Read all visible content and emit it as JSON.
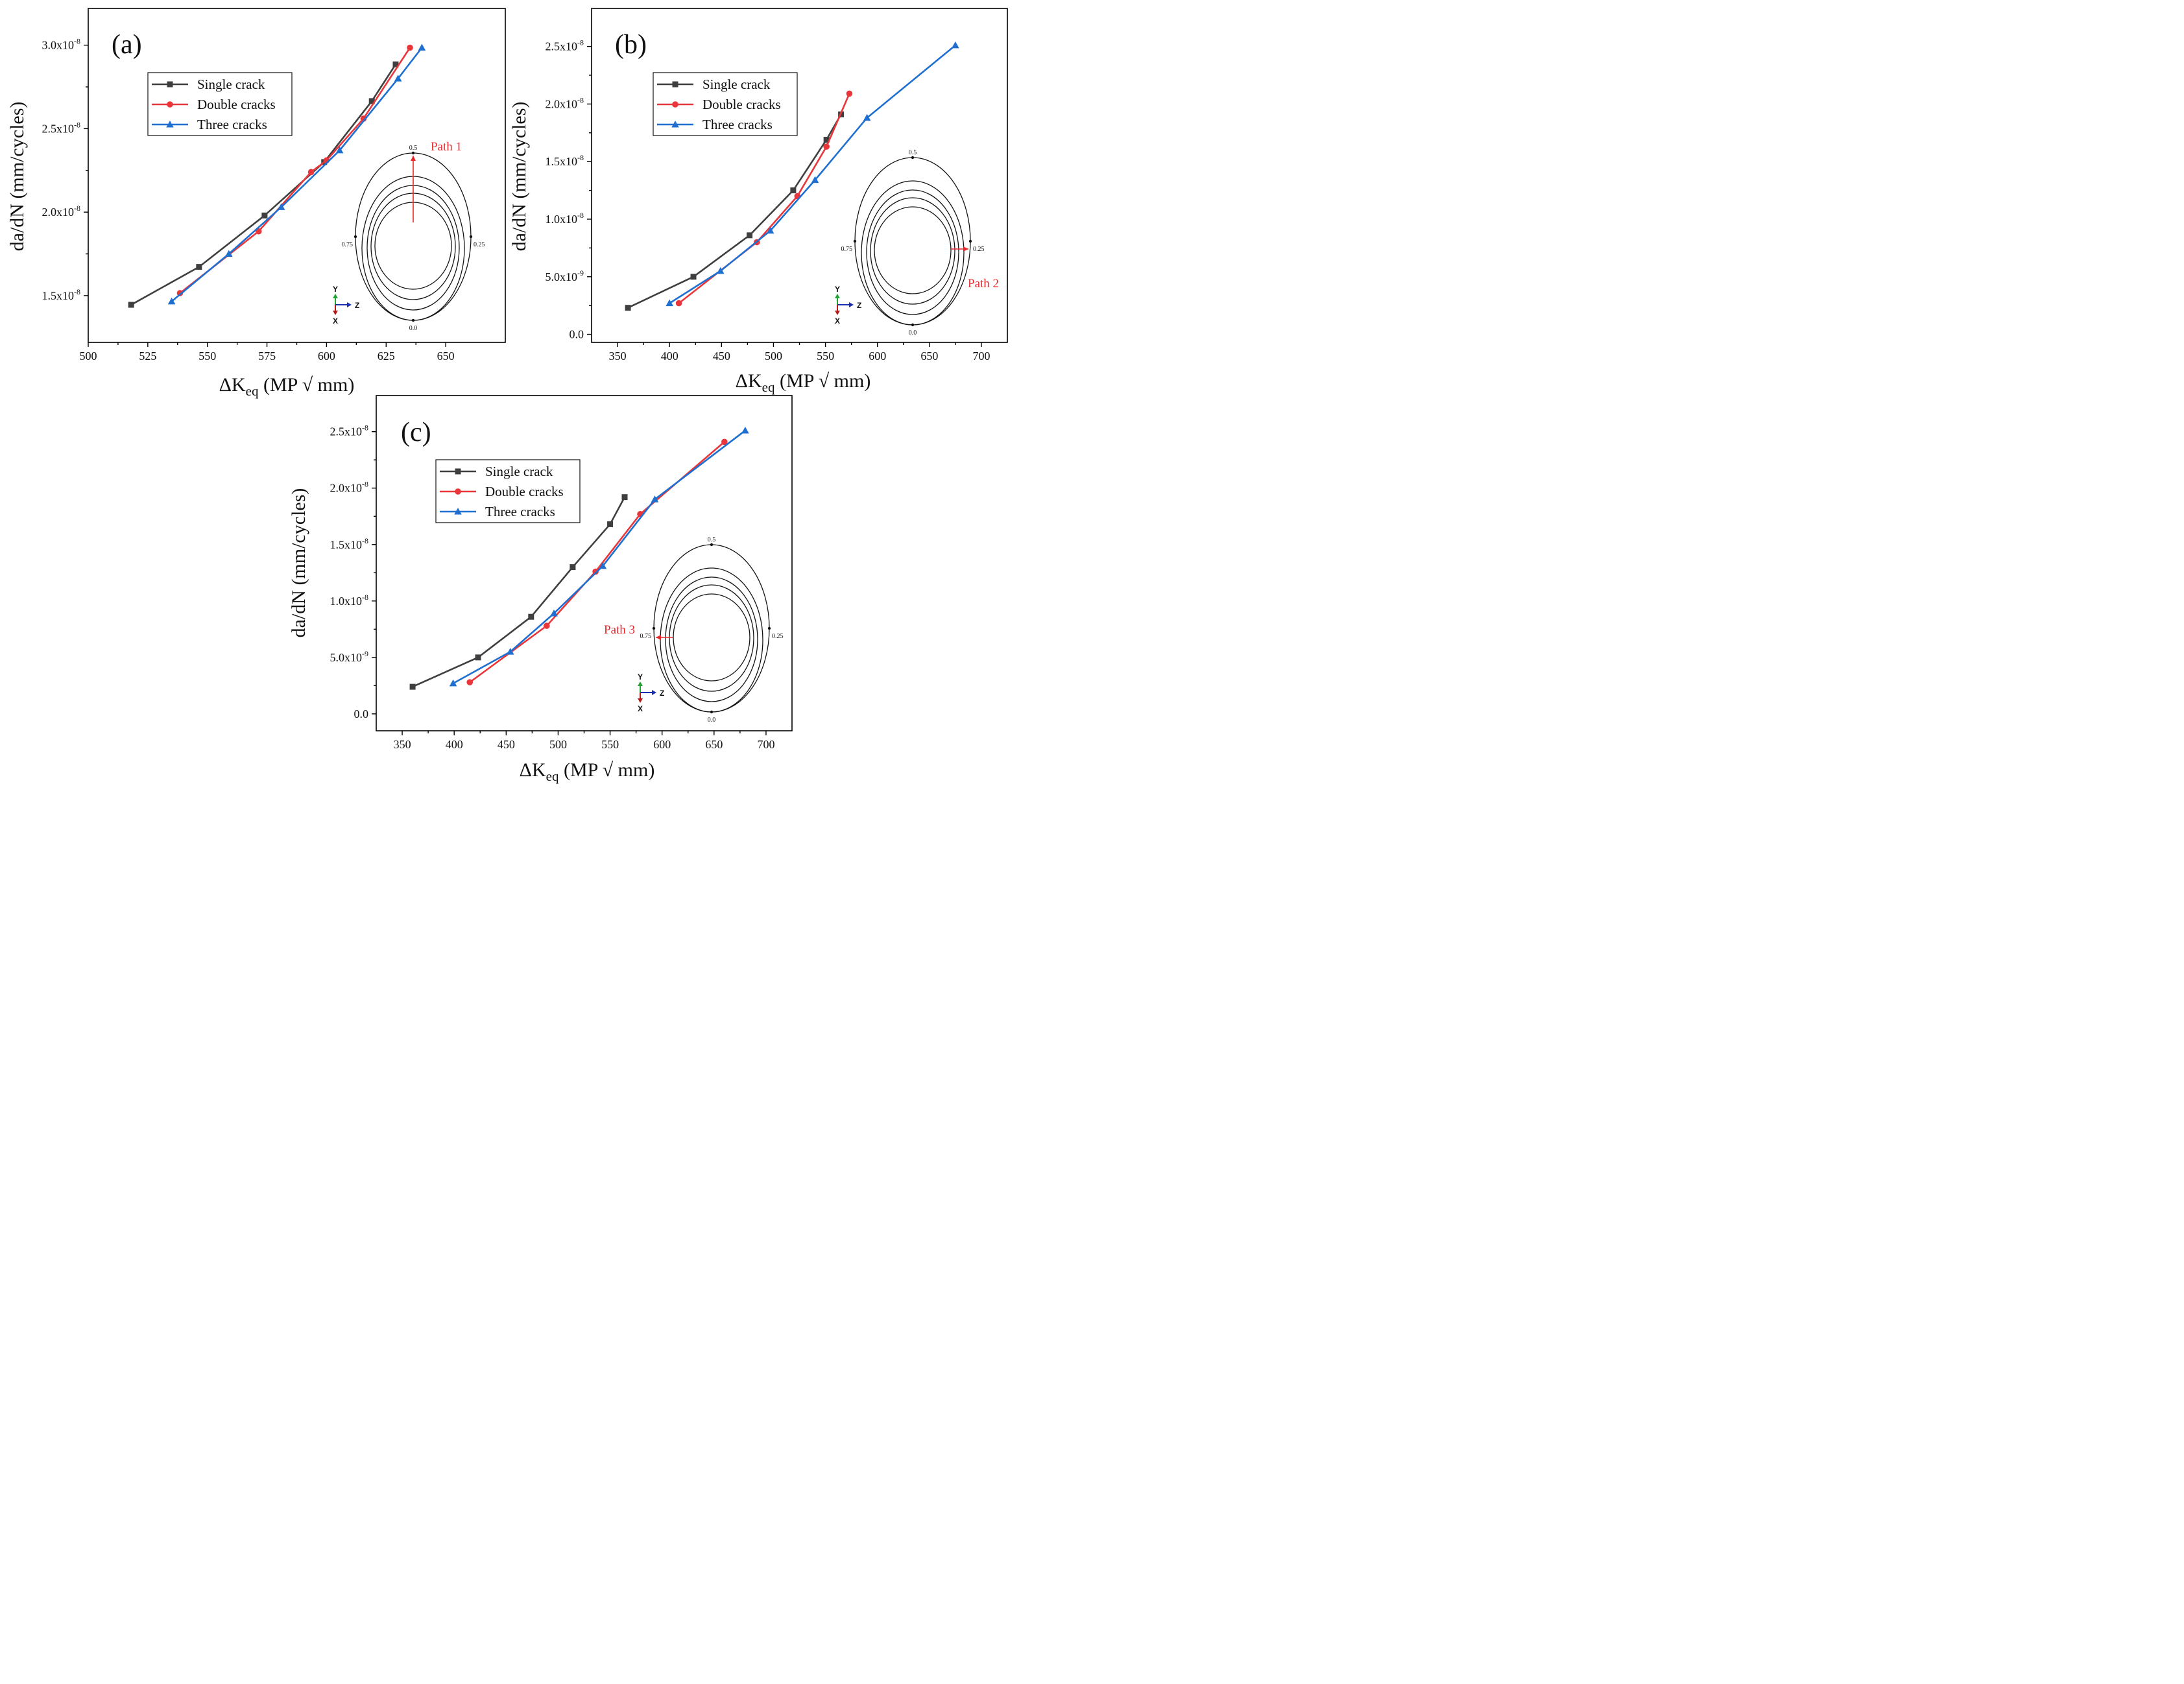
{
  "colors": {
    "single": "#3f3f3f",
    "double": "#e8363a",
    "three": "#1f6fd1",
    "path_arrow": "#e8272b",
    "axis_y": "#21a336",
    "axis_z": "#1a2fb0",
    "axis_x": "#b51a1a"
  },
  "legend_labels": [
    "Single crack",
    "Double cracks",
    "Three cracks"
  ],
  "inset": {
    "labels": [
      "0.5",
      "0.25",
      "0.0",
      "0.75"
    ],
    "axis_names": [
      "Y",
      "Z",
      "X"
    ]
  },
  "chart_data": [
    {
      "type": "line",
      "panel_label": "(a)",
      "xlabel": "ΔK",
      "xlabel_sub": "eq",
      "xlabel_unit": " (MP √ mm)",
      "ylabel": "da/dN (mm/cycles)",
      "xlim": [
        500,
        675
      ],
      "ylim": [
        1.22e-08,
        3.22e-08
      ],
      "xticks": [
        "500",
        "525",
        "550",
        "575",
        "600",
        "625",
        "650"
      ],
      "yticks": [
        {
          "value": 1.5e-08,
          "mant": "1.5x10",
          "exp": "-8"
        },
        {
          "value": 2e-08,
          "mant": "2.0x10",
          "exp": "-8"
        },
        {
          "value": 2.5e-08,
          "mant": "2.5x10",
          "exp": "-8"
        },
        {
          "value": 3e-08,
          "mant": "3.0x10",
          "exp": "-8"
        }
      ],
      "path_label": "Path 1",
      "series": [
        {
          "name": "Single crack",
          "x": [
            518,
            546.5,
            574,
            599,
            619,
            629
          ],
          "y": [
            1.445e-08,
            1.672e-08,
            1.98e-08,
            2.3e-08,
            2.665e-08,
            2.885e-08
          ]
        },
        {
          "name": "Double cracks",
          "x": [
            538.5,
            571.5,
            593.5,
            600,
            615.5,
            635
          ],
          "y": [
            1.515e-08,
            1.885e-08,
            2.24e-08,
            2.31e-08,
            2.56e-08,
            2.985e-08
          ]
        },
        {
          "name": "Three cracks",
          "x": [
            535,
            559,
            581,
            605.5,
            630,
            640
          ],
          "y": [
            1.465e-08,
            1.75e-08,
            2.03e-08,
            2.37e-08,
            2.8e-08,
            2.985e-08
          ]
        }
      ]
    },
    {
      "type": "line",
      "panel_label": "(b)",
      "xlabel": "ΔK",
      "xlabel_sub": "eq",
      "xlabel_unit": " (MP √ mm)",
      "ylabel": "da/dN (mm/cycles)",
      "xlim": [
        325,
        725
      ],
      "ylim": [
        -7e-10,
        2.83e-08
      ],
      "xticks": [
        "350",
        "400",
        "450",
        "500",
        "550",
        "600",
        "650",
        "700"
      ],
      "yticks": [
        {
          "value": 0,
          "mant": "0.0",
          "exp": ""
        },
        {
          "value": 5e-09,
          "mant": "5.0x10",
          "exp": "-9"
        },
        {
          "value": 1e-08,
          "mant": "1.0x10",
          "exp": "-8"
        },
        {
          "value": 1.5e-08,
          "mant": "1.5x10",
          "exp": "-8"
        },
        {
          "value": 2e-08,
          "mant": "2.0x10",
          "exp": "-8"
        },
        {
          "value": 2.5e-08,
          "mant": "2.5x10",
          "exp": "-8"
        }
      ],
      "path_label": "Path 2",
      "series": [
        {
          "name": "Single crack",
          "x": [
            360,
            423,
            477,
            519,
            551,
            565
          ],
          "y": [
            2.3e-09,
            5e-09,
            8.6e-09,
            1.25e-08,
            1.69e-08,
            1.91e-08
          ]
        },
        {
          "name": "Double cracks",
          "x": [
            409,
            484,
            523,
            551,
            573
          ],
          "y": [
            2.7e-09,
            8e-09,
            1.2e-08,
            1.63e-08,
            2.09e-08
          ]
        },
        {
          "name": "Three cracks",
          "x": [
            400,
            449,
            497,
            540,
            590,
            675
          ],
          "y": [
            2.7e-09,
            5.5e-09,
            9e-09,
            1.34e-08,
            1.88e-08,
            2.51e-08
          ]
        }
      ]
    },
    {
      "type": "line",
      "panel_label": "(c)",
      "xlabel": "ΔK",
      "xlabel_sub": "eq",
      "xlabel_unit": " (MP √ mm)",
      "ylabel": "da/dN (mm/cycles)",
      "xlim": [
        325,
        725
      ],
      "ylim": [
        -1.5e-09,
        2.82e-08
      ],
      "xticks": [
        "350",
        "400",
        "450",
        "500",
        "550",
        "600",
        "650",
        "700"
      ],
      "yticks": [
        {
          "value": 0,
          "mant": "0.0",
          "exp": ""
        },
        {
          "value": 5e-09,
          "mant": "5.0x10",
          "exp": "-9"
        },
        {
          "value": 1e-08,
          "mant": "1.0x10",
          "exp": "-8"
        },
        {
          "value": 1.5e-08,
          "mant": "1.5x10",
          "exp": "-8"
        },
        {
          "value": 2e-08,
          "mant": "2.0x10",
          "exp": "-8"
        },
        {
          "value": 2.5e-08,
          "mant": "2.5x10",
          "exp": "-8"
        }
      ],
      "path_label": "Path 3",
      "series": [
        {
          "name": "Single crack",
          "x": [
            360,
            423,
            474,
            514,
            550,
            564
          ],
          "y": [
            2.4e-09,
            5e-09,
            8.6e-09,
            1.3e-08,
            1.68e-08,
            1.92e-08
          ]
        },
        {
          "name": "Double cracks",
          "x": [
            415,
            489,
            536,
            579,
            660
          ],
          "y": [
            2.8e-09,
            7.8e-09,
            1.26e-08,
            1.77e-08,
            2.41e-08
          ]
        },
        {
          "name": "Three cracks",
          "x": [
            399,
            454,
            496,
            543,
            593,
            680
          ],
          "y": [
            2.7e-09,
            5.5e-09,
            8.9e-09,
            1.31e-08,
            1.9e-08,
            2.51e-08
          ]
        }
      ]
    }
  ]
}
